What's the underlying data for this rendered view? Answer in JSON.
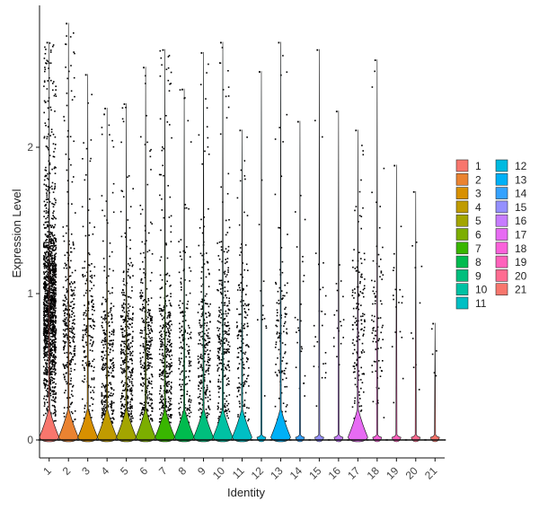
{
  "chart_data": {
    "type": "violin",
    "xlabel": "Identity",
    "ylabel": "Expression Level",
    "ylim": [
      -0.1,
      2.95
    ],
    "yticks": [
      0,
      1,
      2
    ],
    "categories": [
      "1",
      "2",
      "3",
      "4",
      "5",
      "6",
      "7",
      "8",
      "9",
      "10",
      "11",
      "12",
      "13",
      "14",
      "15",
      "16",
      "17",
      "18",
      "19",
      "20",
      "21"
    ],
    "colors": [
      "#F8766D",
      "#EA8331",
      "#D89000",
      "#C09B00",
      "#A3A500",
      "#7CAE00",
      "#39B600",
      "#00BB4E",
      "#00BF7D",
      "#00C1A3",
      "#00BFC4",
      "#00BAE0",
      "#00B0F6",
      "#35A2FF",
      "#9590FF",
      "#C77CFF",
      "#E76BF3",
      "#FA62DB",
      "#FF62BC",
      "#FF6C91",
      "#F8766D"
    ],
    "max_values": [
      2.72,
      2.85,
      2.5,
      2.27,
      2.3,
      2.55,
      2.67,
      2.4,
      2.65,
      2.72,
      2.12,
      2.52,
      2.72,
      2.18,
      2.67,
      2.25,
      2.12,
      2.6,
      1.88,
      1.7,
      0.8
    ],
    "nonzero_fraction": [
      0.92,
      0.55,
      0.4,
      0.55,
      0.6,
      0.55,
      0.6,
      0.35,
      0.45,
      0.5,
      0.4,
      0.05,
      0.2,
      0.08,
      0.08,
      0.06,
      0.25,
      0.15,
      0.06,
      0.04,
      0.02
    ],
    "expression_center": [
      0.85,
      0.75,
      0.7,
      0.45,
      0.45,
      0.55,
      0.5,
      0.55,
      0.6,
      0.65,
      0.6,
      0.9,
      0.65,
      0.8,
      0.8,
      0.7,
      0.75,
      0.7,
      0.9,
      0.9,
      0.6
    ],
    "point_count": [
      1400,
      300,
      200,
      300,
      380,
      320,
      360,
      180,
      260,
      280,
      160,
      12,
      120,
      25,
      25,
      18,
      150,
      80,
      18,
      10,
      5
    ],
    "legend_labels": [
      "1",
      "2",
      "3",
      "4",
      "5",
      "6",
      "7",
      "8",
      "9",
      "10",
      "11",
      "12",
      "13",
      "14",
      "15",
      "16",
      "17",
      "18",
      "19",
      "20",
      "21"
    ],
    "legend_position": "right"
  }
}
